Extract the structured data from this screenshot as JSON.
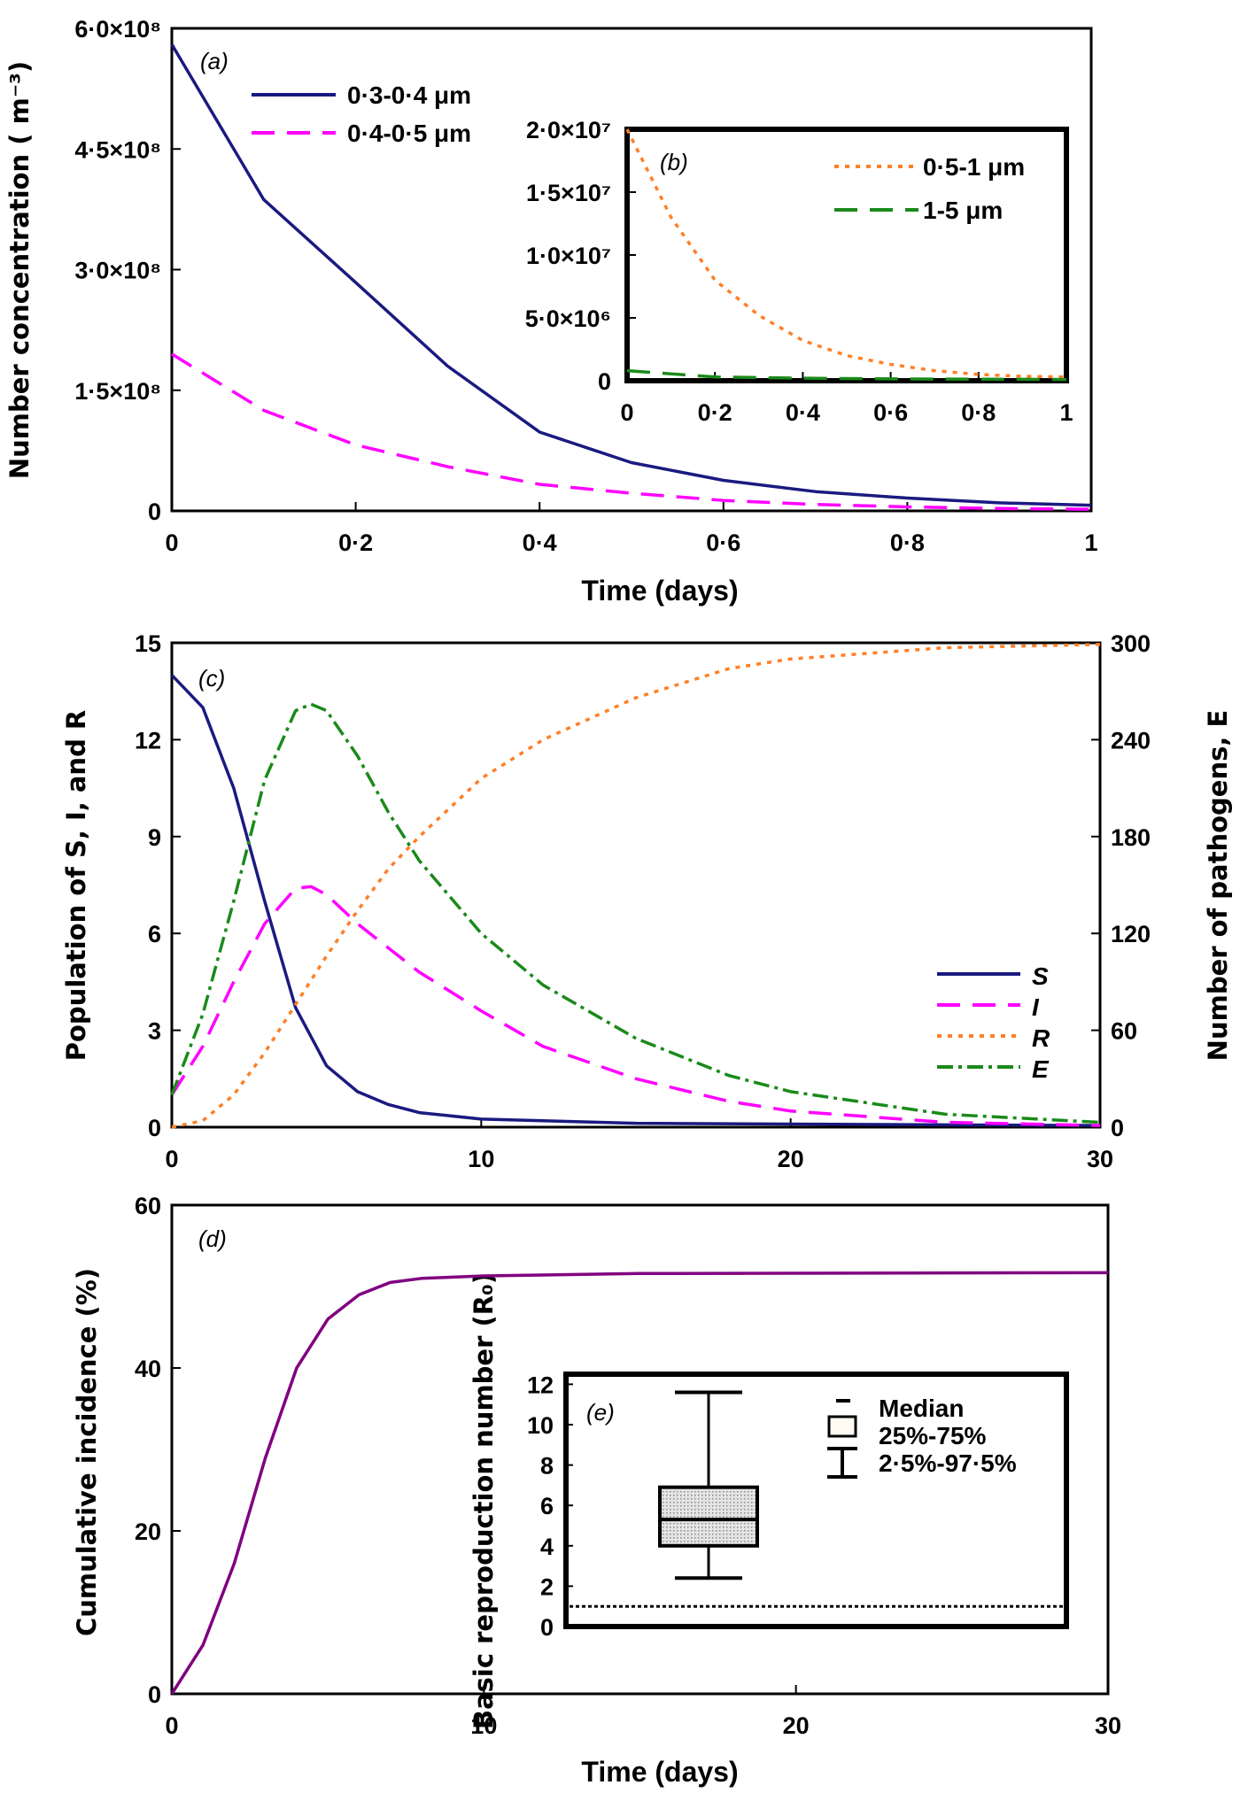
{
  "chart_data": [
    {
      "id": "a",
      "type": "line",
      "panel_label": "(a)",
      "xlabel": "Time (days)",
      "ylabel": "Number concentration ( m⁻³)",
      "xlim": [
        0,
        1
      ],
      "ylim": [
        0,
        600000000
      ],
      "xticks": [
        0,
        0.2,
        0.4,
        0.6,
        0.8,
        1
      ],
      "xtick_labels": [
        "0",
        "0·2",
        "0·4",
        "0·6",
        "0·8",
        "1"
      ],
      "yticks": [
        0,
        150000000,
        300000000,
        450000000,
        600000000
      ],
      "ytick_labels": [
        "0",
        "1·5×10⁸",
        "3·0×10⁸",
        "4·5×10⁸",
        "6·0×10⁸"
      ],
      "legend_placement": "top-left",
      "series": [
        {
          "name": "0·3-0·4 μm",
          "color": "#1a1a80",
          "style": "solid",
          "x": [
            0,
            0.1,
            0.2,
            0.3,
            0.4,
            0.5,
            0.6,
            0.7,
            0.8,
            0.9,
            1
          ],
          "y": [
            580000000,
            387000000,
            284000000,
            180000000,
            98000000,
            60000000,
            38000000,
            24000000,
            16000000,
            10000000,
            7000000
          ]
        },
        {
          "name": "0·4-0·5 μm",
          "color": "#ff00ff",
          "style": "dashed",
          "x": [
            0,
            0.1,
            0.2,
            0.3,
            0.4,
            0.5,
            0.6,
            0.7,
            0.8,
            0.9,
            1
          ],
          "y": [
            195000000,
            125000000,
            82000000,
            55000000,
            33000000,
            22000000,
            13000000,
            8000000,
            5000000,
            3000000,
            2000000
          ]
        }
      ]
    },
    {
      "id": "b",
      "type": "line",
      "panel_label": "(b)",
      "inset_of": "a",
      "xlim": [
        0,
        1
      ],
      "ylim": [
        0,
        20000000
      ],
      "xticks": [
        0,
        0.2,
        0.4,
        0.6,
        0.8,
        1
      ],
      "xtick_labels": [
        "0",
        "0·2",
        "0·4",
        "0·6",
        "0·8",
        "1"
      ],
      "yticks": [
        0,
        5000000,
        10000000,
        15000000,
        20000000
      ],
      "ytick_labels": [
        "0",
        "5·0×10⁶",
        "1·0×10⁷",
        "1·5×10⁷",
        "2·0×10⁷"
      ],
      "legend_placement": "top-right",
      "series": [
        {
          "name": "0·5-1 μm",
          "color": "#ff7f27",
          "style": "dotted",
          "x": [
            0,
            0.1,
            0.2,
            0.3,
            0.4,
            0.5,
            0.6,
            0.7,
            0.8,
            0.9,
            1
          ],
          "y": [
            20000000,
            13000000,
            8000000,
            5200000,
            3200000,
            2000000,
            1300000,
            800000,
            500000,
            350000,
            300000
          ]
        },
        {
          "name": "1-5 μm",
          "color": "#1a8a1a",
          "style": "dashed",
          "x": [
            0,
            0.2,
            0.4,
            0.6,
            0.8,
            1
          ],
          "y": [
            800000,
            300000,
            200000,
            150000,
            120000,
            100000
          ]
        }
      ]
    },
    {
      "id": "c",
      "type": "line",
      "panel_label": "(c)",
      "ylabel": "Population of S, I, and R",
      "y2label": "Number of pathogens, E",
      "xlim": [
        0,
        30
      ],
      "ylim": [
        0,
        15
      ],
      "y2lim": [
        0,
        300
      ],
      "xticks": [
        0,
        10,
        20,
        30
      ],
      "xtick_labels": [
        "0",
        "10",
        "20",
        "30"
      ],
      "yticks": [
        0,
        3,
        6,
        9,
        12,
        15
      ],
      "ytick_labels": [
        "0",
        "3",
        "6",
        "9",
        "12",
        "15"
      ],
      "y2ticks": [
        0,
        60,
        120,
        180,
        240,
        300
      ],
      "y2tick_labels": [
        "0",
        "60",
        "120",
        "180",
        "240",
        "300"
      ],
      "legend_placement": "bottom-right",
      "series": [
        {
          "name": "S",
          "color": "#1a1a80",
          "style": "solid",
          "axis": "left",
          "x": [
            0,
            1,
            2,
            3,
            4,
            5,
            6,
            7,
            8,
            10,
            15,
            30
          ],
          "y": [
            14,
            13,
            10.5,
            7,
            3.7,
            1.9,
            1.1,
            0.7,
            0.45,
            0.25,
            0.12,
            0.05
          ]
        },
        {
          "name": "I",
          "color": "#ff00ff",
          "style": "dashed",
          "axis": "left",
          "x": [
            0,
            1,
            2,
            3,
            4,
            4.5,
            5,
            6,
            8,
            10,
            12,
            15,
            18,
            20,
            25,
            30
          ],
          "y": [
            1,
            2.5,
            4.5,
            6.3,
            7.4,
            7.45,
            7.2,
            6.3,
            4.8,
            3.6,
            2.5,
            1.5,
            0.8,
            0.5,
            0.15,
            0.05
          ]
        },
        {
          "name": "R",
          "color": "#ff7f27",
          "style": "dotted",
          "axis": "left",
          "x": [
            0,
            1,
            2,
            3,
            4,
            5,
            6,
            7,
            8,
            10,
            12,
            15,
            18,
            20,
            25,
            30
          ],
          "y": [
            0,
            0.2,
            1,
            2.3,
            3.8,
            5.3,
            6.7,
            8,
            9,
            10.8,
            12,
            13.3,
            14.2,
            14.5,
            14.85,
            14.95
          ]
        },
        {
          "name": "E",
          "color": "#1a8a1a",
          "style": "dashdot",
          "axis": "right",
          "x": [
            0,
            1,
            2,
            3,
            4,
            4.5,
            5,
            6,
            7,
            8,
            10,
            12,
            15,
            18,
            20,
            25,
            30
          ],
          "y": [
            20,
            70,
            140,
            215,
            258,
            262,
            258,
            230,
            195,
            165,
            120,
            88,
            55,
            32,
            22,
            8,
            3
          ]
        }
      ]
    },
    {
      "id": "d",
      "type": "line",
      "panel_label": "(d)",
      "xlabel": "Time (days)",
      "ylabel": "Cumulative incidence (%)",
      "xlim": [
        0,
        30
      ],
      "ylim": [
        0,
        60
      ],
      "xticks": [
        0,
        10,
        20,
        30
      ],
      "xtick_labels": [
        "0",
        "10",
        "20",
        "30"
      ],
      "yticks": [
        0,
        20,
        40,
        60
      ],
      "ytick_labels": [
        "0",
        "20",
        "40",
        "60"
      ],
      "series": [
        {
          "color": "#800080",
          "style": "solid",
          "x": [
            0,
            1,
            2,
            3,
            4,
            5,
            6,
            7,
            8,
            10,
            15,
            30
          ],
          "y": [
            0,
            6,
            16,
            29,
            40,
            46,
            49,
            50.5,
            51,
            51.3,
            51.6,
            51.7
          ]
        }
      ]
    },
    {
      "id": "e",
      "type": "box",
      "panel_label": "(e)",
      "inset_of": "d",
      "ylabel": "Basic reproduction number (R₀)",
      "ylim": [
        0,
        12.5
      ],
      "yticks": [
        0,
        2,
        4,
        6,
        8,
        10,
        12
      ],
      "ytick_labels": [
        "0",
        "2",
        "4",
        "6",
        "8",
        "10",
        "12"
      ],
      "box": {
        "whisker_low": 2.4,
        "q1": 4.0,
        "median": 5.3,
        "q3": 6.9,
        "whisker_high": 11.6
      },
      "reference_line": 1,
      "legend": [
        "Median",
        "25%-75%",
        "2·5%-97·5%"
      ],
      "legend_placement": "top-right"
    }
  ]
}
